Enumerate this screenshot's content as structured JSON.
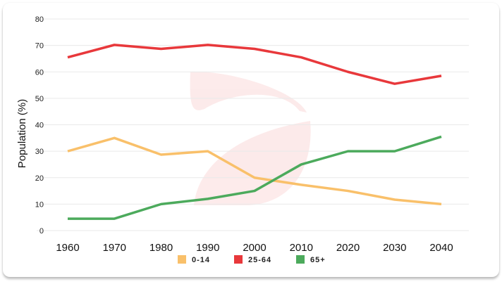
{
  "chart_data": {
    "type": "line",
    "title": "",
    "xlabel": "",
    "ylabel": "Population (%)",
    "x": [
      1960,
      1970,
      1980,
      1990,
      2000,
      2010,
      2020,
      2030,
      2040
    ],
    "xticks": [
      "1960",
      "1970",
      "1980",
      "1990",
      "2000",
      "2010",
      "2020",
      "2030",
      "2040"
    ],
    "yticks": [
      "0",
      "10",
      "20",
      "30",
      "40",
      "50",
      "60",
      "70",
      "80"
    ],
    "ylim": [
      0,
      80
    ],
    "grid": true,
    "legend_position": "bottom",
    "series": [
      {
        "name": "0-14",
        "color": "#f9c06a",
        "values": [
          30,
          35,
          28.7,
          30,
          20,
          17.3,
          15,
          11.7,
          10
        ]
      },
      {
        "name": "25-64",
        "color": "#e8383b",
        "values": [
          65.5,
          70.2,
          68.7,
          70.2,
          68.7,
          65.5,
          60,
          55.5,
          58.5
        ]
      },
      {
        "name": "65+",
        "color": "#4caa5c",
        "values": [
          4.5,
          4.5,
          10,
          12,
          15,
          25,
          30,
          30,
          35.5
        ]
      }
    ]
  }
}
